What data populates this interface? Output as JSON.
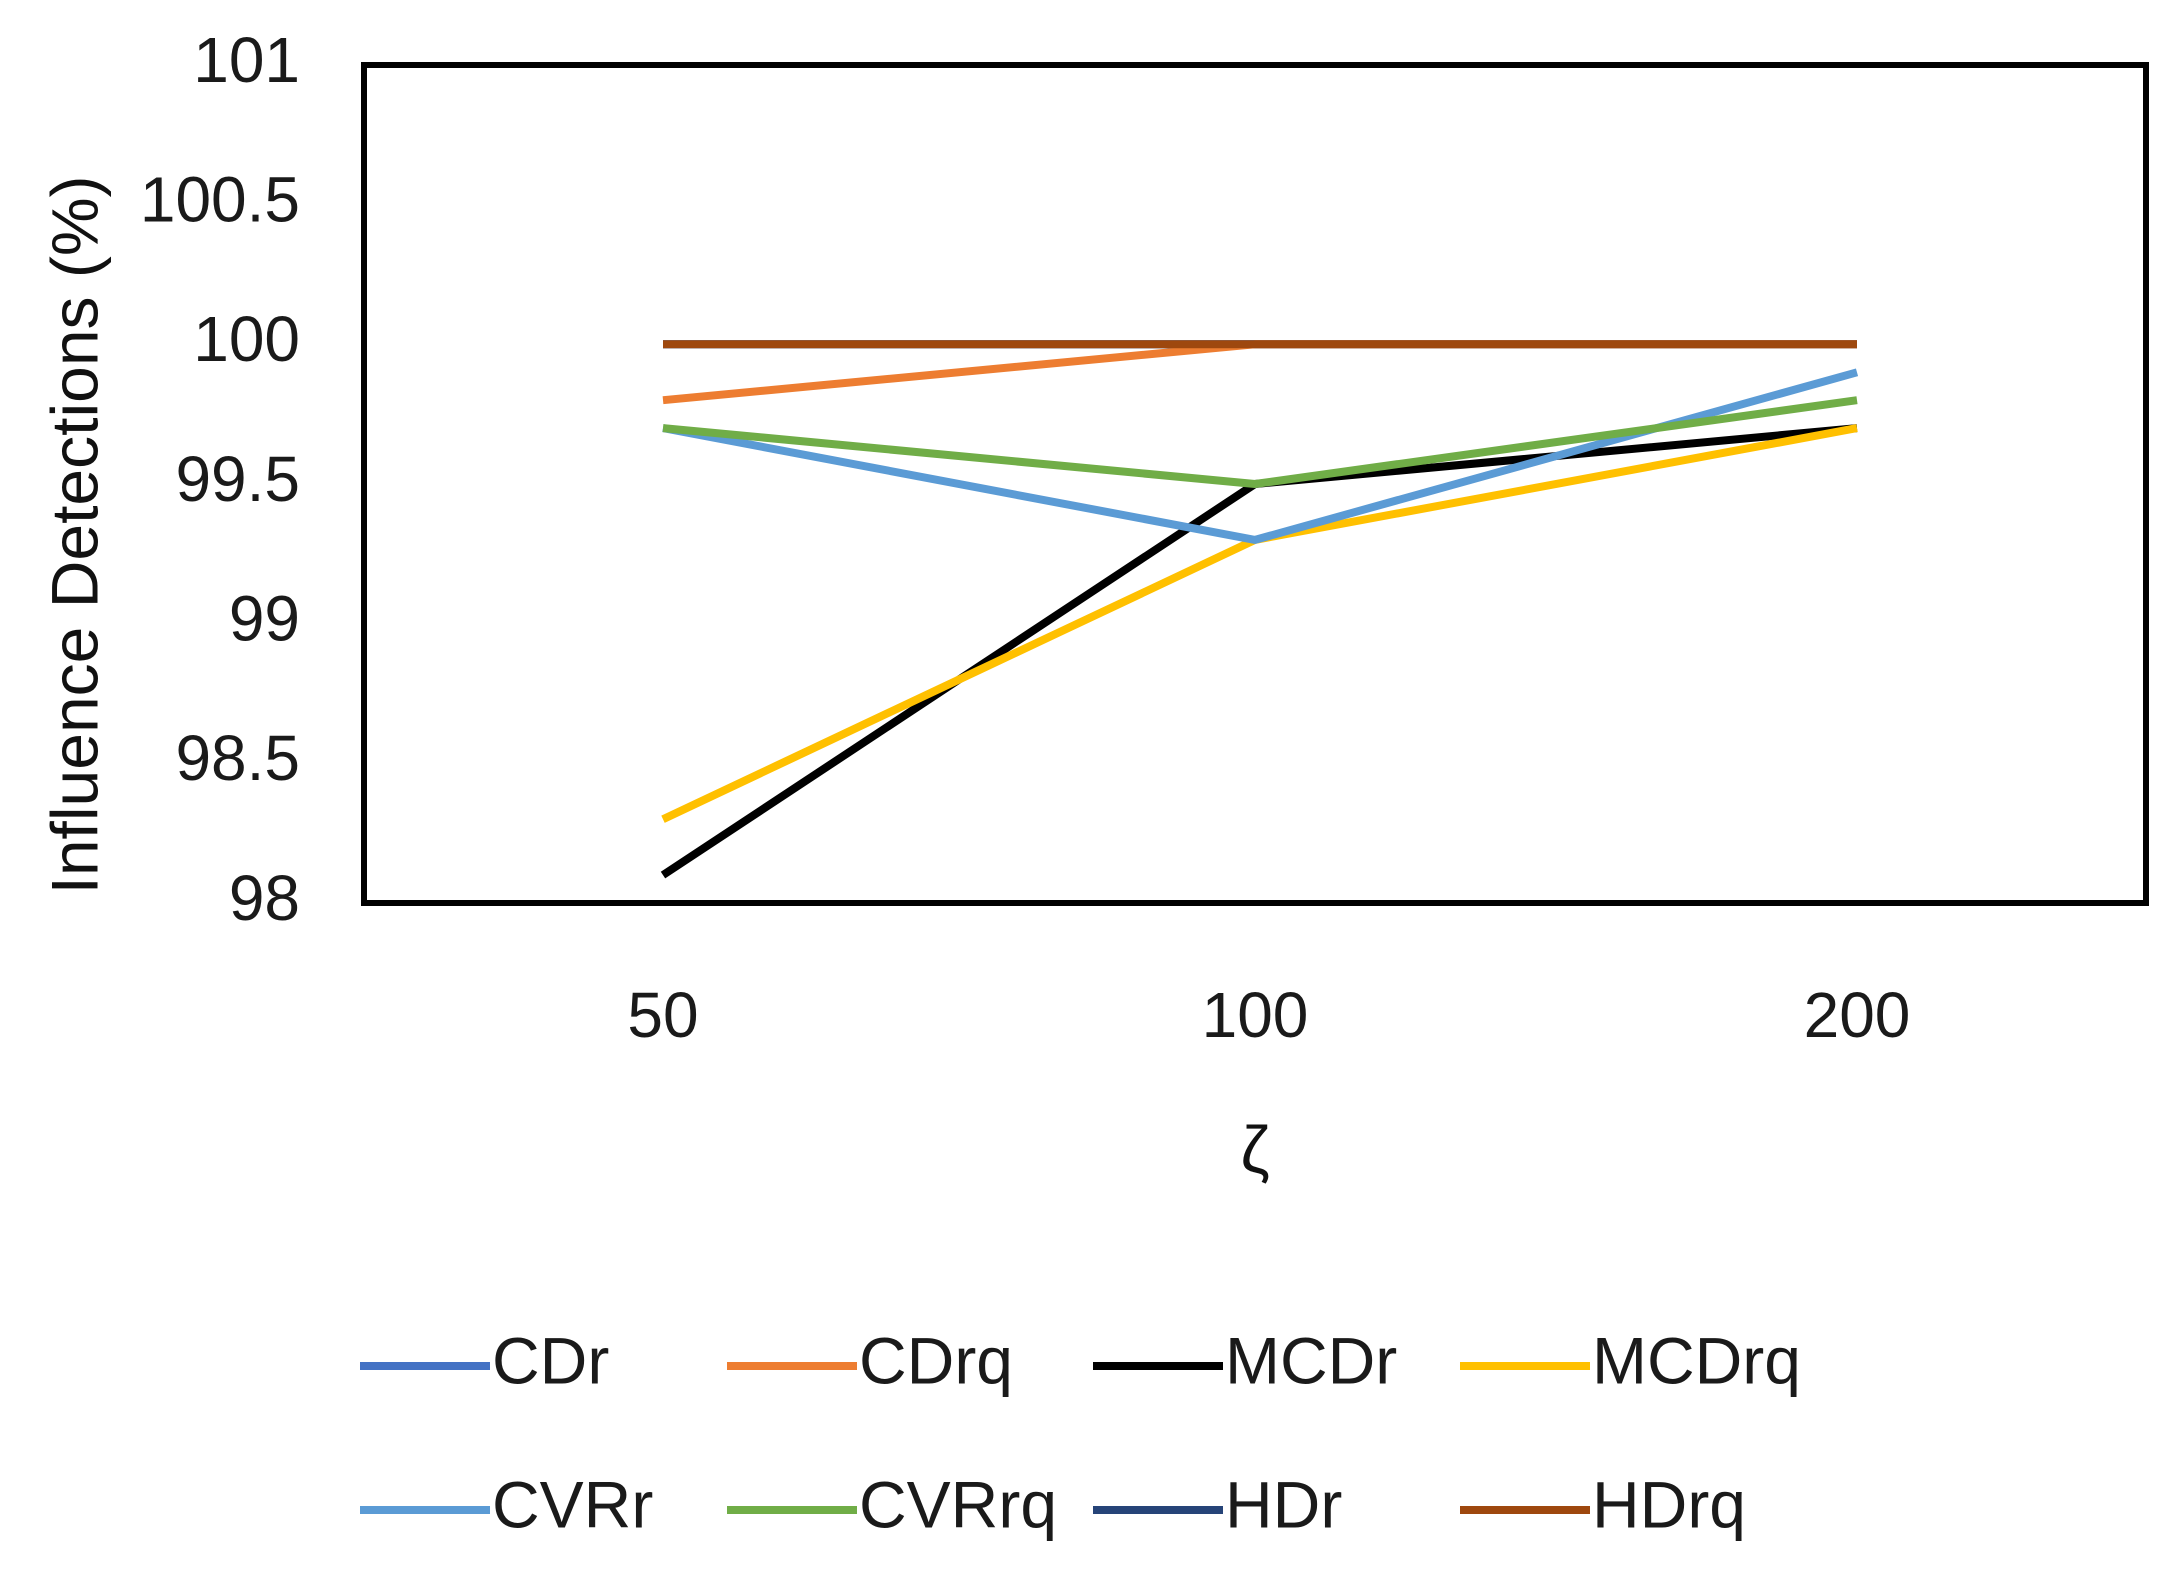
{
  "chart_data": {
    "type": "line",
    "title": "",
    "xlabel": "ζ",
    "ylabel": "Influence Detections (%)",
    "categories": [
      "50",
      "100",
      "200"
    ],
    "ylim": [
      98,
      101
    ],
    "yticks": [
      "98",
      "98.5",
      "99",
      "99.5",
      "100",
      "100.5",
      "101"
    ],
    "legend_position": "bottom",
    "series": [
      {
        "name": "CDr",
        "color": "#4472C4",
        "values": [
          100,
          100,
          100
        ]
      },
      {
        "name": "CDrq",
        "color": "#ED7D31",
        "values": [
          99.8,
          100,
          100
        ]
      },
      {
        "name": "MCDr",
        "color": "#000000",
        "values": [
          98.1,
          99.5,
          99.7
        ]
      },
      {
        "name": "MCDrq",
        "color": "#FFC000",
        "values": [
          98.3,
          99.3,
          99.7
        ]
      },
      {
        "name": "CVRr",
        "color": "#5B9BD5",
        "values": [
          99.7,
          99.3,
          99.9
        ]
      },
      {
        "name": "CVRrq",
        "color": "#70AD47",
        "values": [
          99.7,
          99.5,
          99.8
        ]
      },
      {
        "name": "HDr",
        "color": "#264478",
        "values": [
          100,
          100,
          100
        ]
      },
      {
        "name": "HDrq",
        "color": "#9E480E",
        "values": [
          100,
          100,
          100
        ]
      }
    ]
  }
}
